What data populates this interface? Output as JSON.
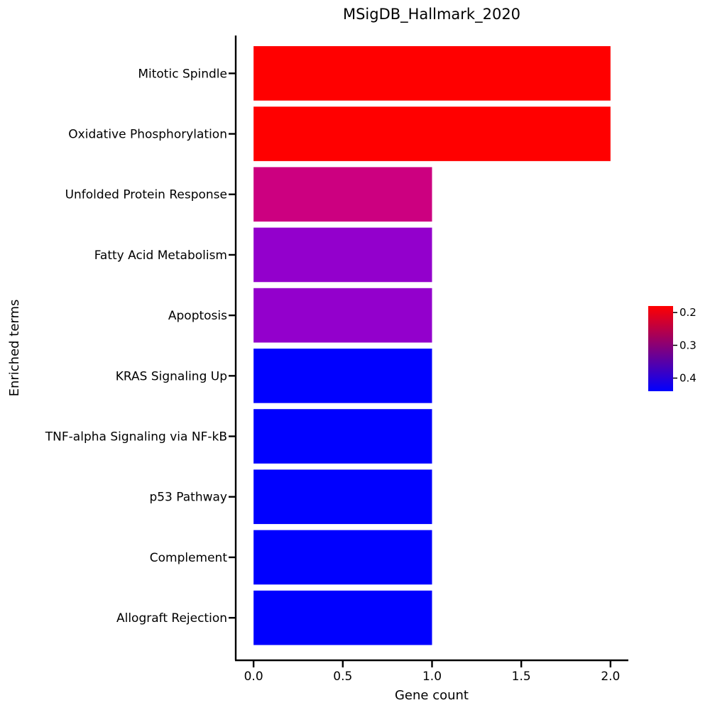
{
  "chart_data": {
    "type": "bar",
    "orientation": "horizontal",
    "title": "MSigDB_Hallmark_2020",
    "xlabel": "Gene count",
    "ylabel": "Enriched terms",
    "xlim": [
      -0.1,
      2.1
    ],
    "xticks": [
      0.0,
      0.5,
      1.0,
      1.5,
      2.0
    ],
    "xtick_labels": [
      "0.0",
      "0.5",
      "1.0",
      "1.5",
      "2.0"
    ],
    "grid": false,
    "categories": [
      "Mitotic Spindle",
      "Oxidative Phosphorylation",
      "Unfolded Protein Response",
      "Fatty Acid Metabolism",
      "Apoptosis",
      "KRAS Signaling Up",
      "TNF-alpha Signaling via NF-kB",
      "p53 Pathway",
      "Complement",
      "Allograft Rejection"
    ],
    "values": [
      2,
      2,
      1,
      1,
      1,
      1,
      1,
      1,
      1,
      1
    ],
    "bar_colors": [
      "#ff0000",
      "#ff0000",
      "#cc0080",
      "#9300cc",
      "#9300cc",
      "#0000ff",
      "#0000ff",
      "#0000ff",
      "#0000ff",
      "#0000ff"
    ],
    "colorbar": {
      "placement": "right",
      "range": [
        0.18,
        0.44
      ],
      "reversed": true,
      "colors": [
        "#ff0000",
        "#0000ff"
      ],
      "ticks": [
        0.2,
        0.3,
        0.4
      ],
      "tick_labels": [
        "0.2",
        "0.3",
        "0.4"
      ]
    }
  }
}
